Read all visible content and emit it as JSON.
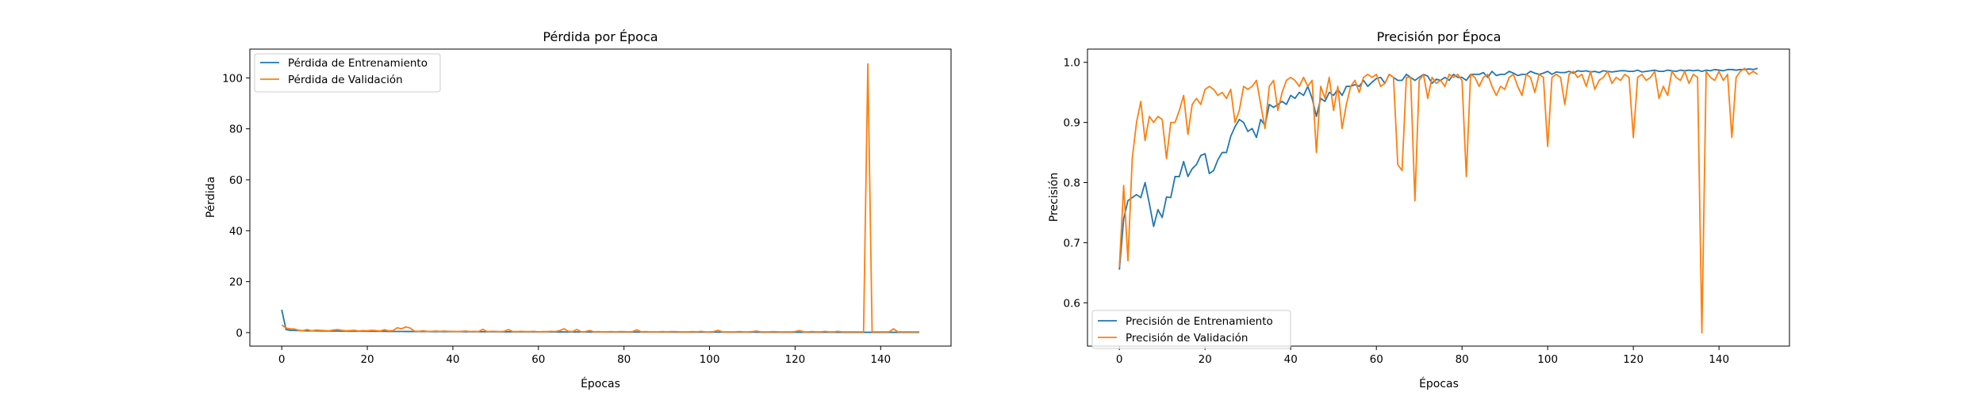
{
  "chart_data": [
    {
      "type": "line",
      "title": "Pérdida por Época",
      "xlabel": "Épocas",
      "ylabel": "Pérdida",
      "xlim": [
        -7.45,
        156.45
      ],
      "ylim": [
        -5.3,
        111.3
      ],
      "xticks": [
        0,
        20,
        40,
        60,
        80,
        100,
        120,
        140
      ],
      "yticks": [
        0,
        20,
        40,
        60,
        80,
        100
      ],
      "grid": false,
      "legend_position": "upper left",
      "x_start": 0,
      "series": [
        {
          "name": "Pérdida de Entrenamiento",
          "color": "#1f77b4",
          "values": [
            9.0,
            1.2,
            0.9,
            0.85,
            0.8,
            0.75,
            0.7,
            0.72,
            0.68,
            0.65,
            0.63,
            0.62,
            0.6,
            0.6,
            0.58,
            0.57,
            0.55,
            0.54,
            0.53,
            0.52,
            0.5,
            0.5,
            0.49,
            0.48,
            0.48,
            0.47,
            0.46,
            0.45,
            0.45,
            0.44,
            0.44,
            0.43,
            0.42,
            0.42,
            0.41,
            0.4,
            0.4,
            0.39,
            0.39,
            0.38,
            0.38,
            0.37,
            0.37,
            0.36,
            0.36,
            0.35,
            0.35,
            0.34,
            0.34,
            0.33,
            0.33,
            0.33,
            0.32,
            0.32,
            0.31,
            0.31,
            0.31,
            0.3,
            0.3,
            0.3,
            0.29,
            0.29,
            0.29,
            0.28,
            0.28,
            0.28,
            0.27,
            0.27,
            0.27,
            0.26,
            0.26,
            0.26,
            0.25,
            0.25,
            0.25,
            0.25,
            0.24,
            0.24,
            0.24,
            0.24,
            0.23,
            0.23,
            0.23,
            0.23,
            0.22,
            0.22,
            0.22,
            0.22,
            0.21,
            0.21,
            0.21,
            0.21,
            0.2,
            0.2,
            0.2,
            0.2,
            0.2,
            0.19,
            0.19,
            0.19,
            0.19,
            0.19,
            0.18,
            0.18,
            0.18,
            0.18,
            0.18,
            0.17,
            0.17,
            0.17,
            0.17,
            0.17,
            0.16,
            0.16,
            0.16,
            0.16,
            0.16,
            0.16,
            0.15,
            0.15,
            0.15,
            0.15,
            0.15,
            0.15,
            0.14,
            0.14,
            0.14,
            0.14,
            0.14,
            0.14,
            0.13,
            0.13,
            0.13,
            0.13,
            0.13,
            0.13,
            0.13,
            0.12,
            0.12,
            0.12,
            0.12,
            0.12,
            0.12,
            0.12,
            0.11,
            0.11,
            0.11,
            0.11,
            0.11,
            0.11
          ]
        },
        {
          "name": "Pérdida de Validación",
          "color": "#ff7f0e",
          "values": [
            3.0,
            1.8,
            1.5,
            1.4,
            0.9,
            0.8,
            1.2,
            0.7,
            1.0,
            0.9,
            0.8,
            0.7,
            1.0,
            1.2,
            0.9,
            0.7,
            0.8,
            0.9,
            0.6,
            0.8,
            0.7,
            0.9,
            0.8,
            0.6,
            1.1,
            0.7,
            0.8,
            1.9,
            1.5,
            2.2,
            1.8,
            0.6,
            0.5,
            0.7,
            0.5,
            0.5,
            0.6,
            0.5,
            0.6,
            0.5,
            0.5,
            0.4,
            0.5,
            0.6,
            0.4,
            0.5,
            0.4,
            1.3,
            0.4,
            0.5,
            0.5,
            0.4,
            0.5,
            1.2,
            0.4,
            0.4,
            0.5,
            0.4,
            0.4,
            0.5,
            0.3,
            0.4,
            0.4,
            0.5,
            0.4,
            0.8,
            1.5,
            0.5,
            0.4,
            1.2,
            0.3,
            0.4,
            0.8,
            0.3,
            0.4,
            0.3,
            0.3,
            0.4,
            0.3,
            0.4,
            0.4,
            0.3,
            0.4,
            1.1,
            0.3,
            0.4,
            0.3,
            0.3,
            0.3,
            0.4,
            0.3,
            0.4,
            0.4,
            0.3,
            0.3,
            0.3,
            0.4,
            0.3,
            0.5,
            0.3,
            0.3,
            0.4,
            0.9,
            0.3,
            0.3,
            0.3,
            0.3,
            0.4,
            0.3,
            0.3,
            0.4,
            0.6,
            0.3,
            0.3,
            0.3,
            0.4,
            0.3,
            0.3,
            0.3,
            0.3,
            0.4,
            0.8,
            0.3,
            0.3,
            0.4,
            0.3,
            0.3,
            0.5,
            0.3,
            0.3,
            0.5,
            0.3,
            0.3,
            0.3,
            0.3,
            0.3,
            0.3,
            105.5,
            0.3,
            0.3,
            0.3,
            0.3,
            0.3,
            1.5,
            0.3,
            0.3,
            0.3,
            0.3,
            0.3,
            0.3
          ]
        }
      ]
    },
    {
      "type": "line",
      "title": "Precisión por Época",
      "xlabel": "Épocas",
      "ylabel": "Precisión",
      "xlim": [
        -7.45,
        156.45
      ],
      "ylim": [
        0.528,
        1.022
      ],
      "xticks": [
        0,
        20,
        40,
        60,
        80,
        100,
        120,
        140
      ],
      "yticks": [
        0.6,
        0.7,
        0.8,
        0.9,
        1.0
      ],
      "grid": false,
      "legend_position": "lower left",
      "x_start": 0,
      "series": [
        {
          "name": "Precisión de Entrenamiento",
          "color": "#1f77b4",
          "values": [
            0.655,
            0.74,
            0.77,
            0.775,
            0.78,
            0.775,
            0.8,
            0.765,
            0.727,
            0.755,
            0.742,
            0.776,
            0.775,
            0.81,
            0.81,
            0.835,
            0.81,
            0.823,
            0.83,
            0.845,
            0.848,
            0.815,
            0.82,
            0.838,
            0.85,
            0.85,
            0.877,
            0.893,
            0.905,
            0.9,
            0.885,
            0.89,
            0.875,
            0.905,
            0.895,
            0.93,
            0.925,
            0.93,
            0.935,
            0.93,
            0.945,
            0.94,
            0.95,
            0.945,
            0.96,
            0.94,
            0.91,
            0.94,
            0.935,
            0.95,
            0.945,
            0.955,
            0.945,
            0.96,
            0.96,
            0.963,
            0.96,
            0.97,
            0.96,
            0.967,
            0.973,
            0.975,
            0.965,
            0.98,
            0.975,
            0.97,
            0.97,
            0.98,
            0.975,
            0.97,
            0.975,
            0.98,
            0.977,
            0.965,
            0.972,
            0.97,
            0.975,
            0.97,
            0.98,
            0.975,
            0.975,
            0.97,
            0.98,
            0.98,
            0.98,
            0.983,
            0.975,
            0.985,
            0.978,
            0.98,
            0.98,
            0.985,
            0.982,
            0.978,
            0.98,
            0.98,
            0.985,
            0.982,
            0.98,
            0.982,
            0.985,
            0.98,
            0.984,
            0.983,
            0.983,
            0.985,
            0.982,
            0.986,
            0.985,
            0.986,
            0.984,
            0.985,
            0.983,
            0.986,
            0.985,
            0.984,
            0.985,
            0.986,
            0.986,
            0.985,
            0.985,
            0.987,
            0.984,
            0.985,
            0.986,
            0.987,
            0.985,
            0.985,
            0.987,
            0.986,
            0.985,
            0.987,
            0.986,
            0.987,
            0.986,
            0.987,
            0.985,
            0.987,
            0.986,
            0.988,
            0.987,
            0.986,
            0.988,
            0.988,
            0.987,
            0.988,
            0.988,
            0.989,
            0.988,
            0.99
          ]
        },
        {
          "name": "Precisión de Validación",
          "color": "#ff7f0e",
          "values": [
            0.66,
            0.795,
            0.67,
            0.84,
            0.9,
            0.935,
            0.87,
            0.91,
            0.9,
            0.91,
            0.905,
            0.84,
            0.9,
            0.9,
            0.92,
            0.945,
            0.88,
            0.93,
            0.94,
            0.93,
            0.955,
            0.96,
            0.955,
            0.945,
            0.95,
            0.94,
            0.955,
            0.9,
            0.92,
            0.96,
            0.955,
            0.96,
            0.97,
            0.93,
            0.89,
            0.96,
            0.97,
            0.92,
            0.95,
            0.97,
            0.975,
            0.97,
            0.96,
            0.975,
            0.96,
            0.97,
            0.85,
            0.96,
            0.94,
            0.975,
            0.92,
            0.96,
            0.89,
            0.93,
            0.96,
            0.97,
            0.95,
            0.975,
            0.98,
            0.975,
            0.98,
            0.96,
            0.965,
            0.98,
            0.975,
            0.83,
            0.82,
            0.975,
            0.975,
            0.77,
            0.97,
            0.98,
            0.94,
            0.975,
            0.965,
            0.97,
            0.96,
            0.98,
            0.975,
            0.98,
            0.97,
            0.81,
            0.98,
            0.975,
            0.96,
            0.975,
            0.98,
            0.96,
            0.945,
            0.96,
            0.955,
            0.975,
            0.98,
            0.96,
            0.945,
            0.98,
            0.975,
            0.95,
            0.98,
            0.975,
            0.86,
            0.975,
            0.98,
            0.975,
            0.93,
            0.98,
            0.985,
            0.975,
            0.98,
            0.96,
            0.985,
            0.955,
            0.97,
            0.975,
            0.985,
            0.965,
            0.975,
            0.97,
            0.98,
            0.975,
            0.875,
            0.975,
            0.98,
            0.97,
            0.975,
            0.985,
            0.94,
            0.96,
            0.945,
            0.985,
            0.975,
            0.97,
            0.985,
            0.965,
            0.98,
            0.975,
            0.55,
            0.985,
            0.975,
            0.97,
            0.985,
            0.97,
            0.98,
            0.875,
            0.975,
            0.985,
            0.99,
            0.98,
            0.985,
            0.98
          ]
        }
      ]
    }
  ]
}
